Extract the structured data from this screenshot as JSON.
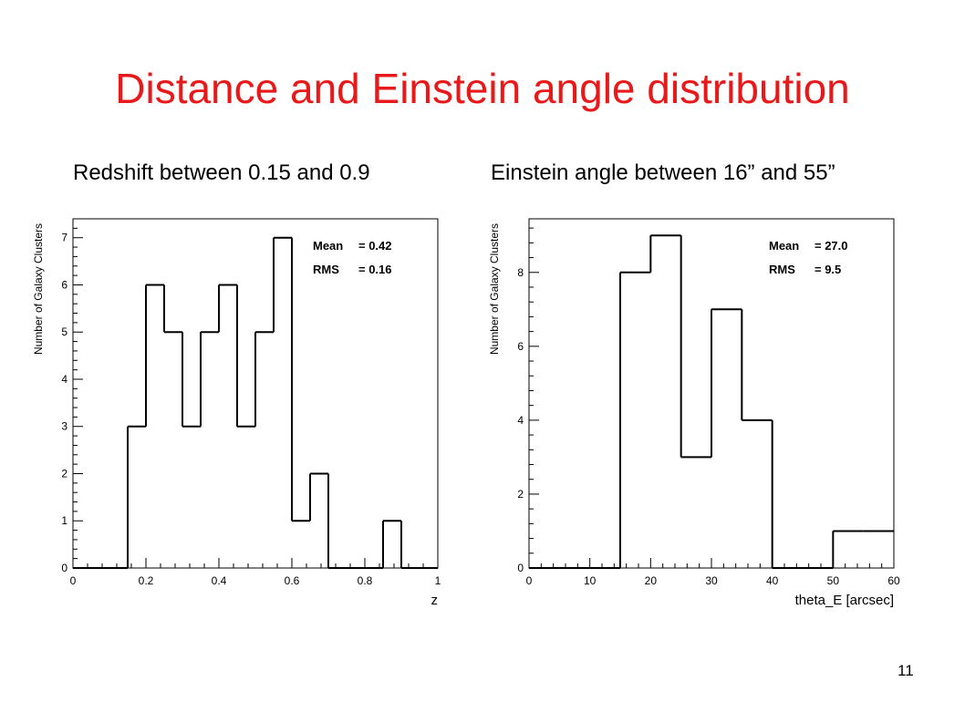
{
  "slide": {
    "title": "Distance and Einstein angle distribution",
    "page_number": "11",
    "title_color": "#e8191a"
  },
  "chart_data": [
    {
      "type": "bar",
      "subtitle": "Redshift between 0.15 and 0.9",
      "xlabel": "z",
      "ylabel": "Number of Galaxy Clusters",
      "xlim": [
        0,
        1
      ],
      "ylim": [
        0,
        7.4
      ],
      "bin_edges": [
        0,
        0.05,
        0.1,
        0.15,
        0.2,
        0.25,
        0.3,
        0.35,
        0.4,
        0.45,
        0.5,
        0.55,
        0.6,
        0.65,
        0.7,
        0.75,
        0.8,
        0.85,
        0.9,
        0.95,
        1.0
      ],
      "values": [
        0,
        0,
        0,
        3,
        6,
        5,
        3,
        5,
        6,
        3,
        5,
        7,
        1,
        2,
        0,
        0,
        0,
        1,
        0,
        0
      ],
      "xticks": [
        "0",
        "0.2",
        "0.4",
        "0.6",
        "0.8",
        "1"
      ],
      "xtick_values": [
        0,
        0.2,
        0.4,
        0.6,
        0.8,
        1
      ],
      "yticks": [
        "0",
        "1",
        "2",
        "3",
        "4",
        "5",
        "6",
        "7"
      ],
      "ytick_values": [
        0,
        1,
        2,
        3,
        4,
        5,
        6,
        7
      ],
      "stats": [
        {
          "label": "Mean",
          "value": "= 0.42"
        },
        {
          "label": "RMS",
          "value": "= 0.16"
        }
      ],
      "grid": false
    },
    {
      "type": "bar",
      "subtitle": "Einstein angle between 16” and 55”",
      "xlabel": "theta_E [arcsec]",
      "ylabel": "Number of Galaxy Clusters",
      "xlim": [
        0,
        60
      ],
      "ylim": [
        0,
        9.45
      ],
      "bin_edges": [
        0,
        5,
        10,
        15,
        20,
        25,
        30,
        35,
        40,
        45,
        50,
        55,
        60
      ],
      "values": [
        0,
        0,
        0,
        8,
        9,
        3,
        7,
        4,
        0,
        0,
        1,
        1
      ],
      "xticks": [
        "0",
        "10",
        "20",
        "30",
        "40",
        "50",
        "60"
      ],
      "xtick_values": [
        0,
        10,
        20,
        30,
        40,
        50,
        60
      ],
      "yticks": [
        "0",
        "2",
        "4",
        "6",
        "8"
      ],
      "ytick_values": [
        0,
        2,
        4,
        6,
        8
      ],
      "stats": [
        {
          "label": "Mean",
          "value": "= 27.0"
        },
        {
          "label": "RMS",
          "value": "= 9.5"
        }
      ],
      "grid": false
    }
  ]
}
